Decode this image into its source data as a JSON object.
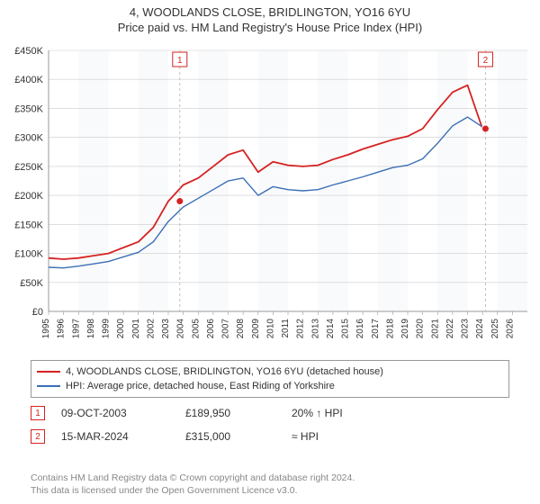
{
  "title": {
    "line1": "4, WOODLANDS CLOSE, BRIDLINGTON, YO16 6YU",
    "line2": "Price paid vs. HM Land Registry's House Price Index (HPI)",
    "fontsize": 13,
    "color": "#333333"
  },
  "chart": {
    "type": "line",
    "background_color": "#ffffff",
    "plot_bg_band_light": "#ffffff",
    "plot_bg_band_dark": "#f9fafb",
    "grid_color": "#cccccc",
    "axis_line_color": "#999999",
    "series": [
      {
        "name": "property",
        "label": "4, WOODLANDS CLOSE, BRIDLINGTON, YO16 6YU (detached house)",
        "color": "#d62222",
        "line_width": 1.8,
        "data": [
          [
            1995,
            92
          ],
          [
            1996,
            90
          ],
          [
            1997,
            92
          ],
          [
            1998,
            96
          ],
          [
            1999,
            100
          ],
          [
            2000,
            110
          ],
          [
            2001,
            120
          ],
          [
            2002,
            145
          ],
          [
            2003,
            190
          ],
          [
            2004,
            218
          ],
          [
            2005,
            230
          ],
          [
            2006,
            250
          ],
          [
            2007,
            270
          ],
          [
            2008,
            278
          ],
          [
            2009,
            240
          ],
          [
            2010,
            258
          ],
          [
            2011,
            252
          ],
          [
            2012,
            250
          ],
          [
            2013,
            252
          ],
          [
            2014,
            262
          ],
          [
            2015,
            270
          ],
          [
            2016,
            280
          ],
          [
            2017,
            288
          ],
          [
            2018,
            296
          ],
          [
            2019,
            302
          ],
          [
            2020,
            315
          ],
          [
            2021,
            348
          ],
          [
            2022,
            378
          ],
          [
            2023,
            390
          ],
          [
            2024,
            315
          ],
          [
            2024.3,
            318
          ]
        ]
      },
      {
        "name": "hpi",
        "label": "HPI: Average price, detached house, East Riding of Yorkshire",
        "color": "#3b6fb6",
        "line_width": 1.4,
        "data": [
          [
            1995,
            76
          ],
          [
            1996,
            75
          ],
          [
            1997,
            78
          ],
          [
            1998,
            82
          ],
          [
            1999,
            86
          ],
          [
            2000,
            94
          ],
          [
            2001,
            102
          ],
          [
            2002,
            120
          ],
          [
            2003,
            155
          ],
          [
            2004,
            180
          ],
          [
            2005,
            195
          ],
          [
            2006,
            210
          ],
          [
            2007,
            225
          ],
          [
            2008,
            230
          ],
          [
            2009,
            200
          ],
          [
            2010,
            215
          ],
          [
            2011,
            210
          ],
          [
            2012,
            208
          ],
          [
            2013,
            210
          ],
          [
            2014,
            218
          ],
          [
            2015,
            225
          ],
          [
            2016,
            232
          ],
          [
            2017,
            240
          ],
          [
            2018,
            248
          ],
          [
            2019,
            252
          ],
          [
            2020,
            263
          ],
          [
            2021,
            290
          ],
          [
            2022,
            320
          ],
          [
            2023,
            335
          ],
          [
            2024,
            318
          ],
          [
            2024.3,
            320
          ]
        ]
      }
    ],
    "x_axis": {
      "min": 1995,
      "max": 2027,
      "ticks": [
        1995,
        1996,
        1997,
        1998,
        1999,
        2000,
        2001,
        2002,
        2003,
        2004,
        2005,
        2006,
        2007,
        2008,
        2009,
        2010,
        2011,
        2012,
        2013,
        2014,
        2015,
        2016,
        2017,
        2018,
        2019,
        2020,
        2021,
        2022,
        2023,
        2024,
        2025,
        2026
      ],
      "label_fontsize": 10,
      "label_rotate": -90
    },
    "y_axis": {
      "min": 0,
      "max": 450,
      "ticks": [
        0,
        50,
        100,
        150,
        200,
        250,
        300,
        350,
        400,
        450
      ],
      "tick_labels": [
        "£0",
        "£50K",
        "£100K",
        "£150K",
        "£200K",
        "£250K",
        "£300K",
        "£350K",
        "£400K",
        "£450K"
      ],
      "label_fontsize": 11
    },
    "markers": [
      {
        "id": "1",
        "x": 2003.77,
        "y": 190,
        "badge_color": "#d62222",
        "dot_color": "#d62222"
      },
      {
        "id": "2",
        "x": 2024.2,
        "y": 315,
        "badge_color": "#d62222",
        "dot_color": "#d62222"
      }
    ]
  },
  "legend": {
    "border_color": "#999999",
    "fontsize": 11,
    "items": [
      {
        "color": "#d62222",
        "text": "4, WOODLANDS CLOSE, BRIDLINGTON, YO16 6YU (detached house)"
      },
      {
        "color": "#3b6fb6",
        "text": "HPI: Average price, detached house, East Riding of Yorkshire"
      }
    ]
  },
  "sales": [
    {
      "badge": "1",
      "badge_color": "#d62222",
      "date": "09-OCT-2003",
      "price": "£189,950",
      "pct": "20% ↑ HPI"
    },
    {
      "badge": "2",
      "badge_color": "#d62222",
      "date": "15-MAR-2024",
      "price": "£315,000",
      "pct": "≈ HPI"
    }
  ],
  "footer": {
    "line1": "Contains HM Land Registry data © Crown copyright and database right 2024.",
    "line2": "This data is licensed under the Open Government Licence v3.0.",
    "color": "#888888",
    "fontsize": 10.5
  }
}
